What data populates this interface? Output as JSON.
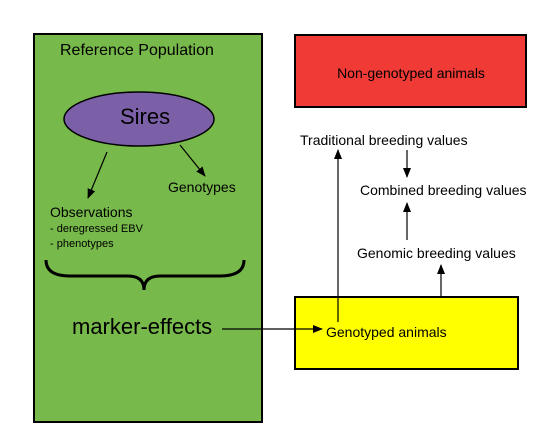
{
  "colors": {
    "reference_population": "#77b94a",
    "sires": "#7b60a8",
    "non_genotyped": "#ef3a36",
    "genotyped": "#ffff00",
    "stroke": "#000000"
  },
  "nodes": {
    "reference_population": "Reference Population",
    "sires": "Sires",
    "genotypes": "Genotypes",
    "observations": {
      "title": "Observations",
      "items": [
        "- deregressed EBV",
        "- phenotypes"
      ]
    },
    "marker_effects": "marker-effects",
    "non_genotyped_animals": "Non-genotyped animals",
    "traditional_breeding_values": "Traditional breeding values",
    "combined_breeding_values": "Combined breeding values",
    "genomic_breeding_values": "Genomic breeding values",
    "genotyped_animals": "Genotyped animals"
  }
}
